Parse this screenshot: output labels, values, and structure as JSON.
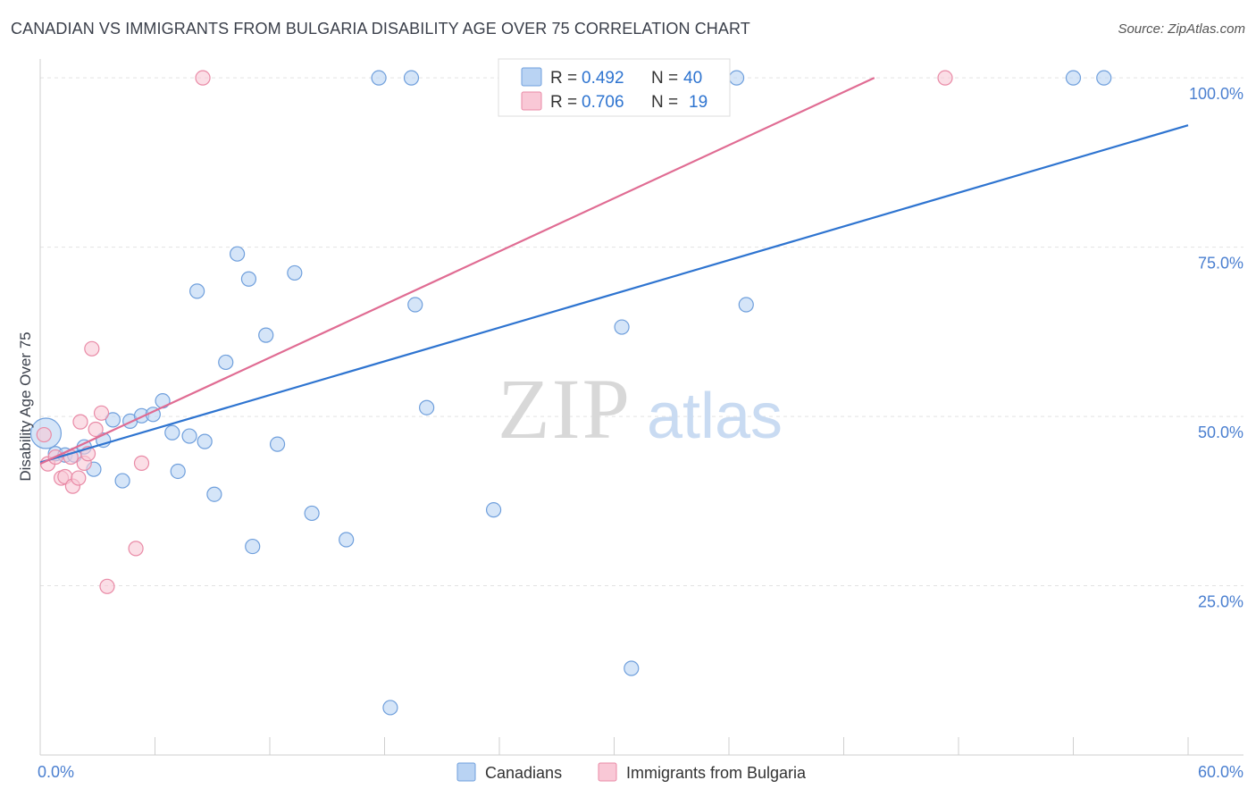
{
  "header": {
    "title": "CANADIAN VS IMMIGRANTS FROM BULGARIA DISABILITY AGE OVER 75 CORRELATION CHART",
    "source": "Source: ZipAtlas.com"
  },
  "watermark": {
    "zip": "ZIP",
    "atlas": "atlas"
  },
  "colors": {
    "canadians_fill": "#b9d3f3",
    "canadians_stroke": "#6f9fdc",
    "canadians_line": "#2e74d0",
    "bulgaria_fill": "#f9c8d6",
    "bulgaria_stroke": "#e98aa6",
    "bulgaria_line": "#e06c93",
    "tick_label": "#4a7fd0",
    "grid": "#e3e3e3"
  },
  "legend_top": [
    {
      "r_label": "R = ",
      "r_value": "0.492",
      "n_label": "N = ",
      "n_value": "40"
    },
    {
      "r_label": "R = ",
      "r_value": "0.706",
      "n_label": "N = ",
      "n_value": "19"
    }
  ],
  "legend_bottom": [
    "Canadians",
    "Immigrants from Bulgaria"
  ],
  "chart_data": {
    "type": "scatter",
    "ylabel": "Disability Age Over 75",
    "xlabel": "",
    "xlim": [
      0,
      60
    ],
    "ylim": [
      0,
      102
    ],
    "x_tick_labels": [
      "0.0%",
      "60.0%"
    ],
    "y_ticks": [
      25,
      50,
      75,
      100
    ],
    "y_tick_labels": [
      "25.0%",
      "50.0%",
      "75.0%",
      "100.0%"
    ],
    "grid": "horizontal dashed",
    "series": [
      {
        "name": "Canadians",
        "points": [
          [
            0.3,
            47.5
          ],
          [
            0.8,
            44.5
          ],
          [
            1.3,
            44.3
          ],
          [
            1.8,
            44.3
          ],
          [
            2.3,
            45.5
          ],
          [
            2.8,
            42.2
          ],
          [
            3.3,
            46.5
          ],
          [
            3.8,
            49.5
          ],
          [
            4.3,
            40.5
          ],
          [
            4.7,
            49.3
          ],
          [
            5.3,
            50.1
          ],
          [
            5.9,
            50.3
          ],
          [
            6.4,
            52.3
          ],
          [
            6.9,
            47.6
          ],
          [
            7.2,
            41.9
          ],
          [
            7.8,
            47.1
          ],
          [
            8.2,
            68.5
          ],
          [
            8.6,
            46.3
          ],
          [
            9.1,
            38.5
          ],
          [
            9.7,
            58.0
          ],
          [
            10.3,
            74.0
          ],
          [
            10.9,
            70.3
          ],
          [
            11.1,
            30.8
          ],
          [
            11.8,
            62.0
          ],
          [
            12.4,
            45.9
          ],
          [
            13.3,
            71.2
          ],
          [
            14.2,
            35.7
          ],
          [
            16.0,
            31.8
          ],
          [
            17.7,
            100.0
          ],
          [
            18.3,
            7.0
          ],
          [
            19.4,
            100.0
          ],
          [
            19.6,
            66.5
          ],
          [
            20.2,
            51.3
          ],
          [
            23.7,
            36.2
          ],
          [
            30.4,
            63.2
          ],
          [
            30.9,
            12.8
          ],
          [
            36.4,
            100.0
          ],
          [
            36.9,
            66.5
          ],
          [
            54.0,
            100.0
          ],
          [
            55.6,
            100.0
          ]
        ],
        "trend": [
          [
            0,
            43.2
          ],
          [
            60,
            93.0
          ]
        ],
        "R": 0.492,
        "N": 40
      },
      {
        "name": "Immigrants from Bulgaria",
        "points": [
          [
            0.2,
            47.3
          ],
          [
            0.4,
            43.0
          ],
          [
            0.8,
            44.0
          ],
          [
            1.1,
            40.9
          ],
          [
            1.3,
            41.1
          ],
          [
            1.7,
            39.7
          ],
          [
            2.0,
            40.9
          ],
          [
            2.1,
            49.2
          ],
          [
            2.3,
            43.1
          ],
          [
            2.5,
            44.5
          ],
          [
            2.7,
            60.0
          ],
          [
            2.9,
            48.1
          ],
          [
            3.2,
            50.5
          ],
          [
            3.5,
            24.9
          ],
          [
            5.0,
            30.5
          ],
          [
            5.3,
            43.1
          ],
          [
            8.5,
            100.0
          ],
          [
            47.3,
            100.0
          ],
          [
            1.6,
            44.0
          ]
        ],
        "trend": [
          [
            0,
            43.0
          ],
          [
            43.6,
            100.0
          ]
        ],
        "R": 0.706,
        "N": 19
      }
    ]
  }
}
